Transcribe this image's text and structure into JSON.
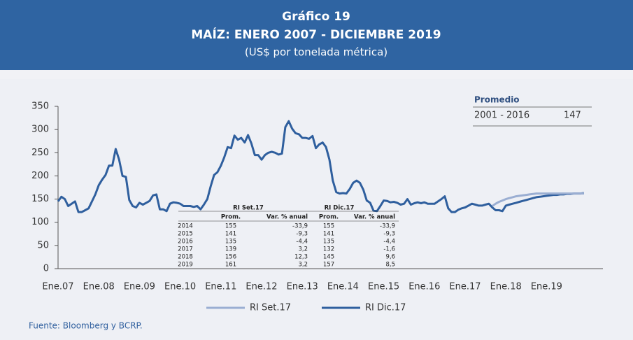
{
  "chart_data": {
    "type": "line",
    "title": "Gráfico 19",
    "subtitle": "MAÍZ: ENERO 2007 - DICIEMBRE 2019",
    "units": "(US$ por tonelada métrica)",
    "source": "Fuente: Bloomberg y BCRP.",
    "categories": [
      "Ene.07",
      null,
      null,
      null,
      null,
      null,
      null,
      null,
      null,
      null,
      null,
      null,
      "Ene.08",
      null,
      null,
      null,
      null,
      null,
      null,
      null,
      null,
      null,
      null,
      null,
      "Ene.09",
      null,
      null,
      null,
      null,
      null,
      null,
      null,
      null,
      null,
      null,
      null,
      "Ene.10",
      null,
      null,
      null,
      null,
      null,
      null,
      null,
      null,
      null,
      null,
      null,
      "Ene.11",
      null,
      null,
      null,
      null,
      null,
      null,
      null,
      null,
      null,
      null,
      null,
      "Ene.12",
      null,
      null,
      null,
      null,
      null,
      null,
      null,
      null,
      null,
      null,
      null,
      "Ene.13",
      null,
      null,
      null,
      null,
      null,
      null,
      null,
      null,
      null,
      null,
      null,
      "Ene.14",
      null,
      null,
      null,
      null,
      null,
      null,
      null,
      null,
      null,
      null,
      null,
      "Ene.15",
      null,
      null,
      null,
      null,
      null,
      null,
      null,
      null,
      null,
      null,
      null,
      "Ene.16",
      null,
      null,
      null,
      null,
      null,
      null,
      null,
      null,
      null,
      null,
      null,
      "Ene.17",
      null,
      null,
      null,
      null,
      null,
      null,
      null,
      null,
      null,
      null,
      null,
      "Ene.18",
      null,
      null,
      null,
      null,
      null,
      null,
      null,
      null,
      null,
      null,
      null,
      "Ene.19",
      null,
      null,
      null,
      null,
      null,
      null,
      null,
      null,
      null,
      null,
      null
    ],
    "series": [
      {
        "name": "RI Dic.17",
        "color": "#2f5f9e",
        "values": [
          145,
          155,
          150,
          135,
          140,
          145,
          122,
          122,
          126,
          130,
          145,
          160,
          180,
          192,
          202,
          222,
          222,
          258,
          235,
          200,
          198,
          148,
          135,
          132,
          142,
          138,
          142,
          146,
          158,
          160,
          128,
          128,
          124,
          140,
          143,
          142,
          140,
          135,
          135,
          135,
          133,
          135,
          128,
          138,
          150,
          178,
          202,
          208,
          222,
          240,
          262,
          260,
          287,
          278,
          282,
          272,
          288,
          270,
          245,
          245,
          235,
          245,
          250,
          252,
          250,
          246,
          248,
          305,
          318,
          302,
          292,
          290,
          282,
          282,
          280,
          286,
          260,
          268,
          272,
          262,
          235,
          190,
          165,
          162,
          163,
          162,
          172,
          185,
          190,
          185,
          170,
          147,
          142,
          125,
          124,
          135,
          147,
          146,
          143,
          144,
          142,
          138,
          140,
          150,
          138,
          141,
          143,
          141,
          143,
          140,
          140,
          140,
          145,
          150,
          156,
          130,
          122,
          122,
          127,
          130,
          132,
          136,
          140,
          138,
          136,
          136,
          138,
          140,
          132,
          126,
          126,
          124,
          136,
          138,
          140,
          142,
          144,
          146,
          148,
          150,
          152,
          154,
          155,
          156,
          157,
          158,
          159,
          159,
          160,
          160,
          161,
          161,
          162,
          162,
          162,
          163
        ]
      },
      {
        "name": "RI Set.17",
        "color": "#9aaed2",
        "values": [
          null,
          null,
          null,
          null,
          null,
          null,
          null,
          null,
          null,
          null,
          null,
          null,
          null,
          null,
          null,
          null,
          null,
          null,
          null,
          null,
          null,
          null,
          null,
          null,
          null,
          null,
          null,
          null,
          null,
          null,
          null,
          null,
          null,
          null,
          null,
          null,
          null,
          null,
          null,
          null,
          null,
          null,
          null,
          null,
          null,
          null,
          null,
          null,
          null,
          null,
          null,
          null,
          null,
          null,
          null,
          null,
          null,
          null,
          null,
          null,
          null,
          null,
          null,
          null,
          null,
          null,
          null,
          null,
          null,
          null,
          null,
          null,
          null,
          null,
          null,
          null,
          null,
          null,
          null,
          null,
          null,
          null,
          null,
          null,
          null,
          null,
          null,
          null,
          null,
          null,
          null,
          null,
          null,
          null,
          null,
          null,
          null,
          null,
          null,
          null,
          null,
          null,
          null,
          null,
          null,
          null,
          null,
          null,
          null,
          null,
          null,
          null,
          null,
          null,
          null,
          null,
          null,
          null,
          null,
          null,
          null,
          null,
          null,
          null,
          null,
          null,
          null,
          null,
          135,
          140,
          144,
          147,
          150,
          152,
          154,
          156,
          157,
          158,
          159,
          160,
          161,
          162,
          162,
          162,
          162,
          162,
          162,
          162,
          162,
          162,
          162,
          162,
          162,
          162,
          162,
          162
        ]
      }
    ],
    "ylim": [
      0,
      350
    ],
    "yticks": [
      0,
      50,
      100,
      150,
      200,
      250,
      300,
      350
    ],
    "promedio": {
      "title": "Promedio",
      "period": "2001 - 2016",
      "value": 147
    },
    "table": {
      "groups": [
        "RI Set.17",
        "RI Dic.17"
      ],
      "columns": [
        "Prom.",
        "Var. % anual",
        "Prom.",
        "Var. % anual"
      ],
      "rows": [
        [
          "2014",
          "155",
          "-33,9",
          "155",
          "-33,9"
        ],
        [
          "2015",
          "141",
          "-9,3",
          "141",
          "-9,3"
        ],
        [
          "2016",
          "135",
          "-4,4",
          "135",
          "-4,4"
        ],
        [
          "2017",
          "139",
          "3,2",
          "132",
          "-1,6"
        ],
        [
          "2018",
          "156",
          "12,3",
          "145",
          "9,6"
        ],
        [
          "2019",
          "161",
          "3,2",
          "157",
          "8,5"
        ]
      ]
    }
  }
}
